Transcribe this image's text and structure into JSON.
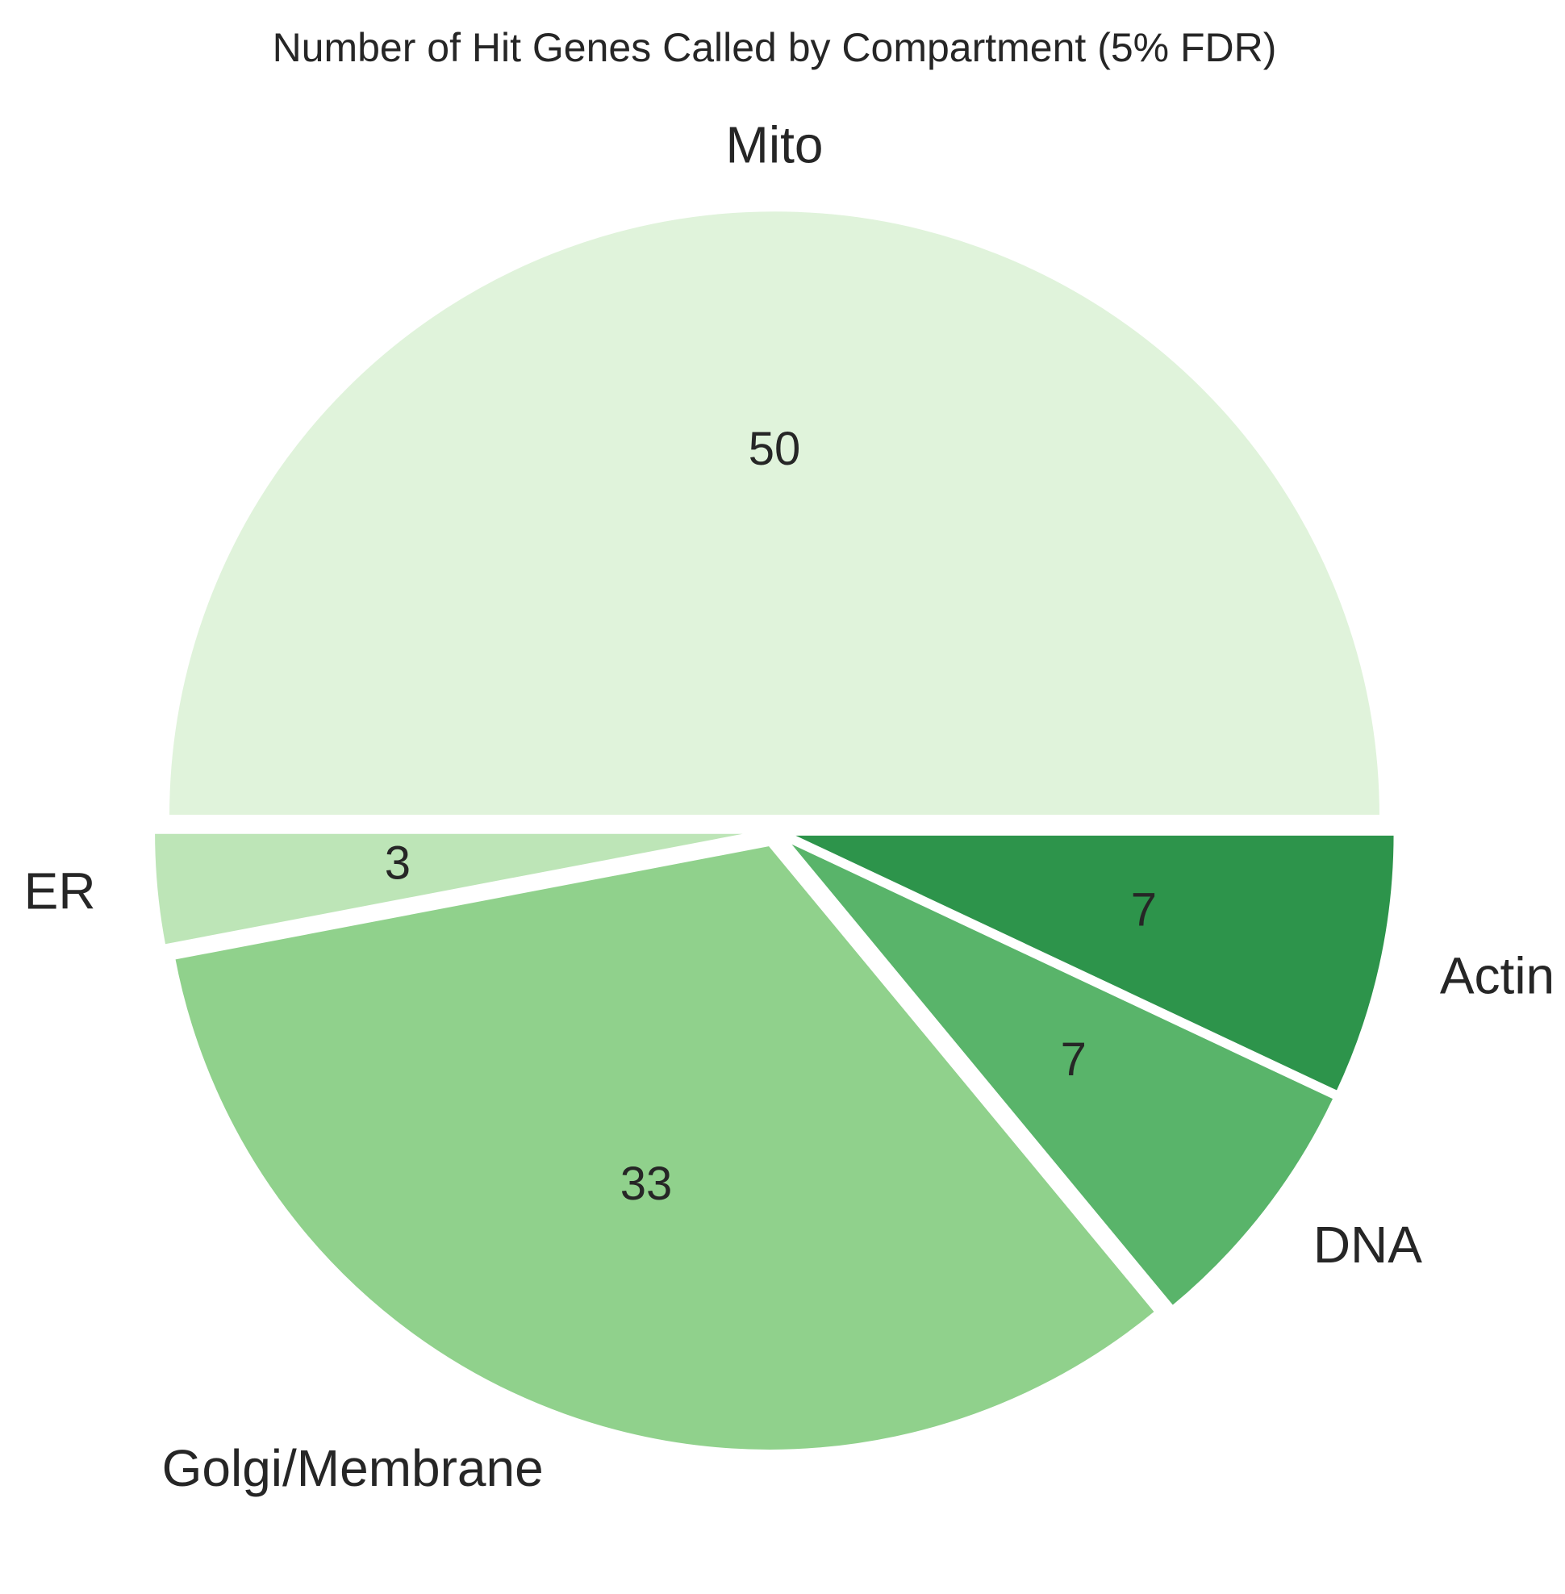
{
  "chart_data": {
    "type": "pie",
    "title": "Number of Hit Genes Called by Compartment (5% FDR)",
    "start_angle_deg": 0,
    "direction": "counterclockwise",
    "explode": true,
    "edge_color": "#ffffff",
    "slices": [
      {
        "label": "Mito",
        "value": 50,
        "value_label": "50",
        "color": "#e0f3db"
      },
      {
        "label": "ER",
        "value": 3,
        "value_label": "3",
        "color": "#bde5b7"
      },
      {
        "label": "Golgi/Membrane",
        "value": 33,
        "value_label": "33",
        "color": "#90d18c"
      },
      {
        "label": "DNA",
        "value": 7,
        "value_label": "7",
        "color": "#59b46a"
      },
      {
        "label": "Actin",
        "value": 7,
        "value_label": "7",
        "color": "#2d944b"
      }
    ]
  }
}
